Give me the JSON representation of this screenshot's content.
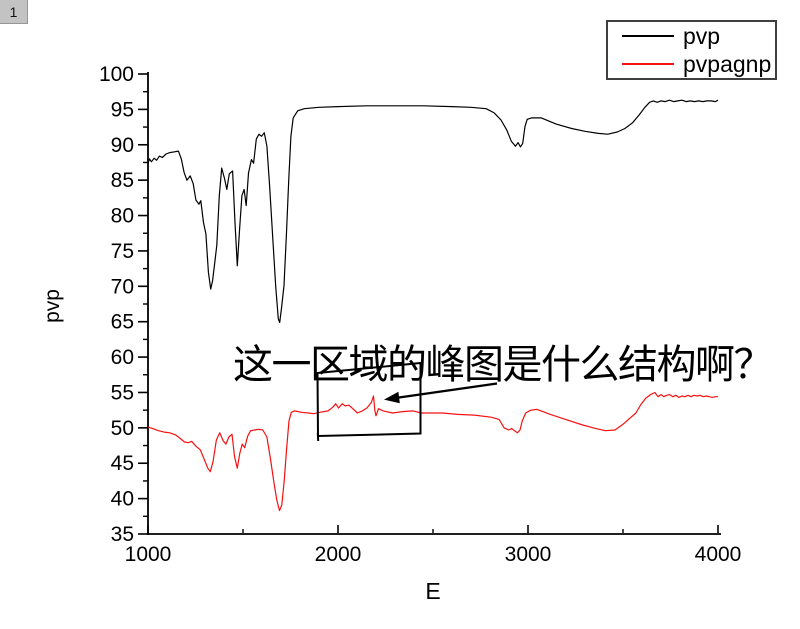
{
  "badge": {
    "label": "1"
  },
  "annotation": {
    "text": "这一区域的峰图是什么结构啊？"
  },
  "chart_data": {
    "type": "line",
    "title": "",
    "xlabel": "E",
    "ylabel": "pvp",
    "xlim": [
      1000,
      4000
    ],
    "ylim": [
      35,
      100
    ],
    "x_ticks": [
      1000,
      2000,
      3000,
      4000
    ],
    "x_minor_ticks": [
      1500,
      2500,
      3500
    ],
    "y_ticks": [
      100,
      95,
      90,
      85,
      80,
      75,
      70,
      65,
      60,
      55,
      50,
      45,
      40,
      35
    ],
    "grid": false,
    "legend": {
      "position": "top-right",
      "entries": [
        "pvp",
        "pvpagnp"
      ]
    },
    "series": [
      {
        "name": "pvp",
        "color": "#000000",
        "points": [
          [
            1000,
            87.4
          ],
          [
            1008,
            88.0
          ],
          [
            1018,
            87.6
          ],
          [
            1032,
            88.1
          ],
          [
            1045,
            87.8
          ],
          [
            1060,
            88.4
          ],
          [
            1075,
            88.2
          ],
          [
            1095,
            88.7
          ],
          [
            1115,
            88.9
          ],
          [
            1140,
            89.0
          ],
          [
            1160,
            89.1
          ],
          [
            1175,
            88.0
          ],
          [
            1190,
            86.1
          ],
          [
            1205,
            85.0
          ],
          [
            1222,
            85.6
          ],
          [
            1238,
            84.5
          ],
          [
            1252,
            82.2
          ],
          [
            1268,
            81.6
          ],
          [
            1278,
            82.1
          ],
          [
            1292,
            79.0
          ],
          [
            1305,
            77.4
          ],
          [
            1318,
            72.0
          ],
          [
            1330,
            69.6
          ],
          [
            1340,
            70.8
          ],
          [
            1352,
            73.5
          ],
          [
            1362,
            75.8
          ],
          [
            1375,
            82.8
          ],
          [
            1388,
            86.7
          ],
          [
            1402,
            85.3
          ],
          [
            1415,
            83.7
          ],
          [
            1428,
            85.9
          ],
          [
            1445,
            86.3
          ],
          [
            1458,
            79.0
          ],
          [
            1470,
            72.9
          ],
          [
            1482,
            78.1
          ],
          [
            1494,
            82.8
          ],
          [
            1506,
            83.7
          ],
          [
            1517,
            81.4
          ],
          [
            1529,
            86.0
          ],
          [
            1544,
            87.9
          ],
          [
            1556,
            87.4
          ],
          [
            1570,
            90.8
          ],
          [
            1584,
            91.5
          ],
          [
            1598,
            91.2
          ],
          [
            1612,
            91.7
          ],
          [
            1626,
            89.8
          ],
          [
            1640,
            84.2
          ],
          [
            1656,
            77.2
          ],
          [
            1672,
            70.0
          ],
          [
            1686,
            65.4
          ],
          [
            1693,
            64.9
          ],
          [
            1702,
            66.8
          ],
          [
            1716,
            70.1
          ],
          [
            1729,
            77.6
          ],
          [
            1741,
            85.2
          ],
          [
            1752,
            91.2
          ],
          [
            1764,
            93.8
          ],
          [
            1788,
            94.8
          ],
          [
            1822,
            95.1
          ],
          [
            1900,
            95.3
          ],
          [
            2000,
            95.4
          ],
          [
            2150,
            95.5
          ],
          [
            2300,
            95.5
          ],
          [
            2450,
            95.5
          ],
          [
            2600,
            95.4
          ],
          [
            2700,
            95.3
          ],
          [
            2780,
            95.1
          ],
          [
            2822,
            94.5
          ],
          [
            2858,
            93.5
          ],
          [
            2888,
            92.1
          ],
          [
            2912,
            90.5
          ],
          [
            2934,
            89.8
          ],
          [
            2948,
            90.3
          ],
          [
            2960,
            89.7
          ],
          [
            2972,
            90.2
          ],
          [
            2984,
            92.6
          ],
          [
            2996,
            93.6
          ],
          [
            3018,
            93.8
          ],
          [
            3070,
            93.8
          ],
          [
            3150,
            92.9
          ],
          [
            3230,
            92.3
          ],
          [
            3300,
            91.9
          ],
          [
            3370,
            91.6
          ],
          [
            3420,
            91.5
          ],
          [
            3470,
            91.8
          ],
          [
            3510,
            92.3
          ],
          [
            3550,
            93.1
          ],
          [
            3585,
            94.2
          ],
          [
            3615,
            95.3
          ],
          [
            3640,
            96.0
          ],
          [
            3660,
            96.2
          ],
          [
            3680,
            96.0
          ],
          [
            3700,
            96.2
          ],
          [
            3722,
            96.1
          ],
          [
            3744,
            96.3
          ],
          [
            3766,
            96.1
          ],
          [
            3788,
            96.2
          ],
          [
            3810,
            96.3
          ],
          [
            3832,
            96.1
          ],
          [
            3854,
            96.2
          ],
          [
            3876,
            96.1
          ],
          [
            3898,
            96.2
          ],
          [
            3920,
            96.1
          ],
          [
            3942,
            96.2
          ],
          [
            3964,
            96.2
          ],
          [
            3986,
            96.1
          ],
          [
            4000,
            96.3
          ]
        ]
      },
      {
        "name": "pvpagnp",
        "color": "#f51111",
        "points": [
          [
            1000,
            50.1
          ],
          [
            1025,
            49.9
          ],
          [
            1055,
            49.6
          ],
          [
            1085,
            49.4
          ],
          [
            1115,
            49.3
          ],
          [
            1145,
            49.0
          ],
          [
            1170,
            48.5
          ],
          [
            1192,
            48.0
          ],
          [
            1212,
            47.9
          ],
          [
            1230,
            48.1
          ],
          [
            1252,
            47.4
          ],
          [
            1275,
            46.9
          ],
          [
            1295,
            45.6
          ],
          [
            1315,
            44.3
          ],
          [
            1328,
            43.8
          ],
          [
            1342,
            45.2
          ],
          [
            1360,
            48.3
          ],
          [
            1378,
            49.3
          ],
          [
            1395,
            48.2
          ],
          [
            1410,
            47.7
          ],
          [
            1426,
            48.7
          ],
          [
            1442,
            49.1
          ],
          [
            1456,
            45.9
          ],
          [
            1470,
            44.3
          ],
          [
            1483,
            46.4
          ],
          [
            1496,
            47.7
          ],
          [
            1509,
            47.2
          ],
          [
            1524,
            48.8
          ],
          [
            1540,
            49.6
          ],
          [
            1560,
            49.7
          ],
          [
            1582,
            49.8
          ],
          [
            1604,
            49.7
          ],
          [
            1626,
            48.7
          ],
          [
            1646,
            45.4
          ],
          [
            1663,
            42.2
          ],
          [
            1678,
            39.8
          ],
          [
            1692,
            38.3
          ],
          [
            1704,
            39.1
          ],
          [
            1717,
            42.5
          ],
          [
            1730,
            47.2
          ],
          [
            1742,
            51.0
          ],
          [
            1754,
            52.2
          ],
          [
            1772,
            52.4
          ],
          [
            1808,
            52.2
          ],
          [
            1845,
            52.1
          ],
          [
            1872,
            52.0
          ],
          [
            1905,
            52.2
          ],
          [
            1948,
            52.4
          ],
          [
            1972,
            52.9
          ],
          [
            1988,
            53.4
          ],
          [
            2003,
            52.8
          ],
          [
            2022,
            53.4
          ],
          [
            2038,
            53.1
          ],
          [
            2058,
            53.2
          ],
          [
            2078,
            52.7
          ],
          [
            2102,
            52.1
          ],
          [
            2128,
            52.4
          ],
          [
            2152,
            52.8
          ],
          [
            2176,
            53.6
          ],
          [
            2187,
            54.5
          ],
          [
            2194,
            52.4
          ],
          [
            2200,
            51.7
          ],
          [
            2213,
            52.7
          ],
          [
            2238,
            52.4
          ],
          [
            2288,
            52.1
          ],
          [
            2340,
            52.3
          ],
          [
            2395,
            52.4
          ],
          [
            2440,
            52.1
          ],
          [
            2492,
            52.1
          ],
          [
            2548,
            52.1
          ],
          [
            2630,
            51.9
          ],
          [
            2718,
            51.8
          ],
          [
            2806,
            51.5
          ],
          [
            2848,
            51.2
          ],
          [
            2874,
            50.0
          ],
          [
            2898,
            49.7
          ],
          [
            2914,
            49.9
          ],
          [
            2929,
            49.6
          ],
          [
            2944,
            49.3
          ],
          [
            2958,
            49.7
          ],
          [
            2970,
            51.0
          ],
          [
            2988,
            52.1
          ],
          [
            3014,
            52.5
          ],
          [
            3048,
            52.6
          ],
          [
            3118,
            51.9
          ],
          [
            3198,
            51.2
          ],
          [
            3288,
            50.4
          ],
          [
            3358,
            49.9
          ],
          [
            3408,
            49.6
          ],
          [
            3458,
            49.7
          ],
          [
            3500,
            50.5
          ],
          [
            3538,
            51.4
          ],
          [
            3568,
            52.1
          ],
          [
            3594,
            53.3
          ],
          [
            3620,
            54.2
          ],
          [
            3645,
            54.7
          ],
          [
            3668,
            55.0
          ],
          [
            3684,
            54.4
          ],
          [
            3700,
            54.7
          ],
          [
            3715,
            54.4
          ],
          [
            3730,
            54.6
          ],
          [
            3746,
            54.7
          ],
          [
            3762,
            54.4
          ],
          [
            3778,
            54.6
          ],
          [
            3794,
            54.3
          ],
          [
            3810,
            54.5
          ],
          [
            3826,
            54.4
          ],
          [
            3842,
            54.6
          ],
          [
            3858,
            54.4
          ],
          [
            3874,
            54.6
          ],
          [
            3890,
            54.5
          ],
          [
            3906,
            54.6
          ],
          [
            3922,
            54.4
          ],
          [
            3938,
            54.5
          ],
          [
            3954,
            54.4
          ],
          [
            3970,
            54.3
          ],
          [
            3986,
            54.4
          ],
          [
            4000,
            54.4
          ]
        ]
      }
    ]
  }
}
